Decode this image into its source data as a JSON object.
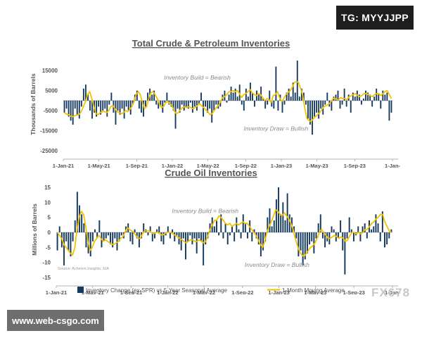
{
  "badges": {
    "telegram": "TG: MYYJJPP",
    "website": "www.web-csgo.com",
    "watermark": "FX678"
  },
  "colors": {
    "bar": "#163a5f",
    "line": "#f2c200",
    "text": "#555555",
    "grid": "#bfbfbf"
  },
  "legend": {
    "bar_label": "Inventory Change (ex-SPR) vs 5-Year Seasonal Average",
    "line_label": "1-Month Moving Average"
  },
  "chart_data": [
    {
      "type": "bar",
      "title": "Total Crude & Petroleum Inventories",
      "ylabel": "Thousands of Barrels",
      "xlabel": "",
      "ylim": [
        -25000,
        20000
      ],
      "yticks": [
        15000,
        5000,
        -5000,
        -15000,
        -25000
      ],
      "ytick_labels": [
        "15000",
        "5000",
        "-5000",
        "-15000",
        "-25000"
      ],
      "x_range": [
        0,
        157
      ],
      "xticks": [
        0,
        17,
        35,
        52,
        69,
        87,
        104,
        121,
        139,
        157
      ],
      "xtick_labels": [
        "1-Jan-21",
        "1-May-21",
        "1-Sep-21",
        "1-Jan-22",
        "1-May-22",
        "1-Sep-22",
        "1-Jan-23",
        "1-May-23",
        "1-Sep-23",
        "1-Jan-"
      ],
      "annotations": [
        {
          "text": "Inventory Build = Bearish",
          "x": 48,
          "y": 10500
        },
        {
          "text": "Inventory Draw = Bullish",
          "x": 86,
          "y": -15000
        }
      ],
      "bar_values": [
        -6000,
        -4000,
        -8000,
        -10000,
        -12000,
        -4000,
        -7000,
        -9000,
        -3000,
        6000,
        8000,
        3000,
        -5000,
        -9000,
        -6000,
        -8000,
        -3000,
        -7000,
        -5000,
        -4000,
        -8000,
        -2000,
        4000,
        -6000,
        -12000,
        -5000,
        -7000,
        -4000,
        -9000,
        -3000,
        -5000,
        -7000,
        -2000,
        3000,
        5000,
        -4000,
        -6000,
        -8000,
        -3000,
        4000,
        6000,
        3000,
        5000,
        -2000,
        -4000,
        -3000,
        -6000,
        -1000,
        4000,
        -2000,
        -3000,
        -5000,
        -14000,
        -4000,
        -6000,
        -2000,
        -5000,
        -3000,
        -4000,
        -1000,
        -6000,
        -3000,
        -5000,
        -2000,
        4000,
        -8000,
        -3000,
        -6000,
        -4000,
        -11000,
        -5000,
        -2000,
        -4000,
        -3000,
        3000,
        5000,
        -1000,
        3000,
        7000,
        4000,
        6000,
        2000,
        8000,
        -2000,
        -5000,
        6000,
        2000,
        9000,
        4000,
        -3000,
        5000,
        3000,
        7000,
        1000,
        -4000,
        -2000,
        5000,
        -3000,
        -4000,
        17000,
        -5000,
        3000,
        -6000,
        -2000,
        4000,
        6000,
        2000,
        9000,
        4000,
        20000,
        2000,
        6000,
        4000,
        -2000,
        -9000,
        -12000,
        -17000,
        -8000,
        -6000,
        -9000,
        -4000,
        -7000,
        -2000,
        4000,
        -3000,
        -5000,
        2000,
        3000,
        5000,
        -4000,
        -2000,
        6000,
        -3000,
        3000,
        -6000,
        4000,
        2000,
        5000,
        3000,
        -2000,
        1000,
        5000,
        4000,
        3000,
        -3000,
        2000,
        6000,
        3000,
        -4000,
        5000,
        3000,
        4000,
        -10000,
        -6000
      ],
      "series": [
        {
          "name": "1-Month Moving Average",
          "values": [
            -6000,
            -6750,
            -7000,
            -7800,
            -8000,
            -7500,
            -7200,
            -6800,
            -5500,
            -3000,
            -500,
            3000,
            4500,
            1000,
            -3000,
            -6500,
            -7000,
            -6000,
            -5500,
            -5500,
            -6000,
            -5000,
            -3000,
            -2500,
            -4000,
            -5500,
            -6000,
            -6500,
            -6000,
            -5000,
            -5500,
            -4500,
            -3000,
            -500,
            3000,
            4500,
            3000,
            -1000,
            -4000,
            -3000,
            1000,
            4000,
            4500,
            3000,
            1000,
            -1500,
            -3500,
            -3000,
            -1000,
            -500,
            -1500,
            -2500,
            -5000,
            -6500,
            -6000,
            -4500,
            -3500,
            -3000,
            -3500,
            -3000,
            -3500,
            -4000,
            -3500,
            -2500,
            -1500,
            -2500,
            -3500,
            -4500,
            -5500,
            -7000,
            -6500,
            -5000,
            -3500,
            -2500,
            -500,
            1500,
            2000,
            3000,
            4500,
            4500,
            5000,
            4500,
            5000,
            3500,
            1500,
            3000,
            3500,
            4500,
            5500,
            4000,
            3000,
            2500,
            3500,
            3000,
            1500,
            0,
            1000,
            500,
            -1000,
            2500,
            3000,
            4500,
            1500,
            -500,
            1000,
            3000,
            4000,
            5000,
            6500,
            9000,
            9500,
            9000,
            6000,
            2500,
            -4000,
            -9000,
            -10000,
            -10500,
            -9000,
            -8000,
            -7000,
            -6000,
            -4500,
            -3000,
            -2500,
            -2000,
            -1000,
            500,
            1500,
            500,
            500,
            1500,
            1000,
            1000,
            500,
            2000,
            2500,
            3000,
            3500,
            2500,
            2000,
            2500,
            3500,
            3500,
            3000,
            2500,
            2000,
            3000,
            3500,
            3500,
            2500,
            3500,
            4500,
            5000,
            3000,
            1000
          ]
        }
      ]
    },
    {
      "type": "bar",
      "title": "Crude Oil Inventories",
      "ylabel": "Millions of Barrels",
      "xlabel": "",
      "ylim": [
        -15,
        15
      ],
      "yticks": [
        15,
        10,
        5,
        0,
        -5,
        -10,
        -15
      ],
      "ytick_labels": [
        "15",
        "10",
        "5",
        "0",
        "-5",
        "-10",
        "-15"
      ],
      "x_range": [
        0,
        157
      ],
      "xticks": [
        0,
        17,
        35,
        52,
        69,
        87,
        104,
        121,
        139,
        157
      ],
      "xtick_labels": [
        "1-Jan-21",
        "1-May-21",
        "1-Sep-21",
        "1-Jan-22",
        "1-May-22",
        "1-Sep-22",
        "1-Jan-23",
        "1-May-23",
        "1-Sep-23",
        "1-Jan-"
      ],
      "annotations": [
        {
          "text": "Inventory Build = Bearish",
          "x": 54,
          "y": 6.5
        },
        {
          "text": "Inventory Draw = Bullish",
          "x": 88,
          "y": -11.5
        }
      ],
      "source": "Source: Acheron Insights, EIA",
      "bar_values": [
        -6,
        2,
        -5,
        -11,
        -3,
        -6,
        -8,
        -3,
        4,
        13.5,
        9,
        6,
        3,
        -5,
        -7,
        -8,
        -3,
        1,
        -2,
        4,
        -5,
        -3,
        -2,
        -1,
        -4,
        -5,
        -2,
        -6,
        -3,
        -1,
        -2,
        2,
        3,
        -3,
        -4,
        1,
        -2,
        -5,
        -2,
        3,
        1,
        -1,
        2,
        -3,
        -2,
        1,
        2,
        -3,
        -4,
        -1,
        2,
        -2,
        1,
        -3,
        -1,
        -4,
        -6,
        -2,
        -9,
        -3,
        -1,
        -4,
        -2,
        -7,
        -2,
        -3,
        -11,
        -4,
        -2,
        3,
        5,
        2,
        4,
        -1,
        6,
        -2,
        3,
        -4,
        -1,
        2,
        -3,
        5,
        1,
        -2,
        6,
        3,
        -2,
        4,
        -3,
        1,
        -2,
        -4,
        -8,
        -6,
        -3,
        5,
        8,
        2,
        4,
        11,
        15,
        6,
        10,
        4,
        13,
        6,
        5,
        2,
        -2,
        -8,
        -6,
        -11,
        -9,
        -7,
        -4,
        -3,
        -7,
        -2,
        3,
        6,
        -2,
        -5,
        -3,
        -4,
        2,
        1,
        -3,
        -2,
        4,
        -6,
        -14,
        -2,
        5,
        1,
        -3,
        -1,
        2,
        -3,
        2,
        3,
        -2,
        4,
        1,
        2,
        6,
        3,
        -3,
        7,
        -5,
        -4,
        -2,
        1
      ],
      "series": [
        {
          "name": "1-Month Moving Average",
          "values": [
            0,
            -1,
            -2,
            -4,
            -5,
            -6,
            -7,
            -7.5,
            -5,
            1,
            5,
            7,
            6,
            2,
            -3,
            -6,
            -5,
            -3,
            -2,
            -1,
            -2,
            -3,
            -2.5,
            -3,
            -3.5,
            -4,
            -4,
            -3.5,
            -3,
            -2,
            -1.5,
            0,
            1.5,
            1,
            0.5,
            0,
            -1,
            -2,
            -2,
            -0.5,
            0.5,
            0.5,
            0.5,
            0,
            -0.5,
            0,
            0,
            -0.5,
            -1,
            -0.5,
            0,
            0,
            0,
            -0.5,
            -1,
            -1.5,
            -2,
            -2.5,
            -3,
            -3.5,
            -3,
            -2.5,
            -2.5,
            -3,
            -3,
            -2.5,
            -3,
            -3.5,
            -3,
            -1,
            1,
            2.5,
            4,
            4,
            5.5,
            5,
            4,
            3,
            2.5,
            3,
            2,
            2.5,
            3,
            2.5,
            3,
            3.5,
            3,
            3,
            2,
            1,
            0,
            -1,
            -2.5,
            -4,
            -5,
            -3,
            0,
            2,
            3.5,
            5.5,
            7.5,
            7,
            6,
            5.5,
            6.5,
            5.5,
            4.5,
            3,
            1,
            -2,
            -4.5,
            -6.5,
            -7.5,
            -8,
            -7,
            -6,
            -5,
            -4.5,
            -3.5,
            -2,
            0,
            1,
            0,
            -1,
            -2,
            -2,
            -1.5,
            -1,
            -1.5,
            -2,
            -1.5,
            -2,
            -3,
            -2.5,
            -1,
            0,
            0,
            -0.5,
            0,
            -0.5,
            0,
            1,
            1,
            2,
            3,
            3.5,
            4.5,
            5,
            6,
            6,
            3.5,
            2,
            0.5,
            0
          ]
        }
      ]
    }
  ]
}
